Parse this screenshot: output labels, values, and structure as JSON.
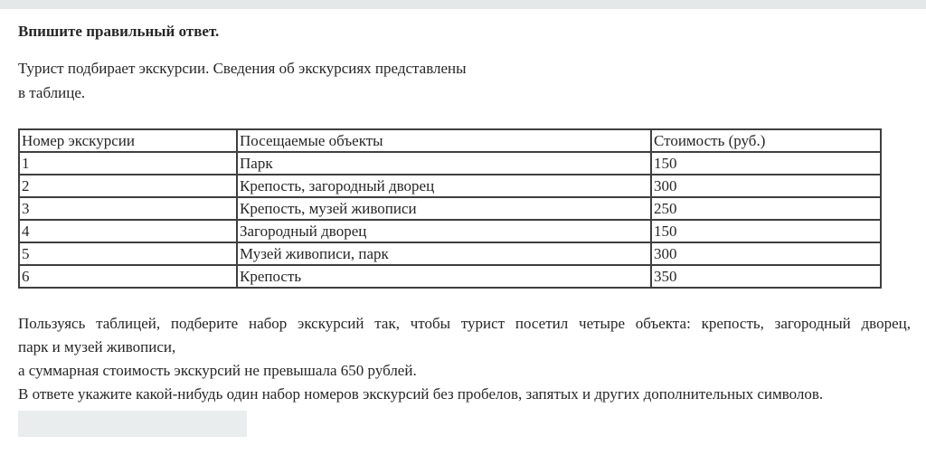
{
  "page": {
    "heading": "Впишите правильный ответ.",
    "intro_line1": "Турист подбирает экскурсии. Сведения об экскурсиях представлены",
    "intro_line2": "в таблице."
  },
  "table": {
    "headers": [
      "Номер экскурсии",
      "Посещаемые объекты",
      "Стоимость (руб.)"
    ],
    "rows": [
      [
        "1",
        "Парк",
        "150"
      ],
      [
        "2",
        "Крепость, загородный дворец",
        "300"
      ],
      [
        "3",
        "Крепость, музей живописи",
        "250"
      ],
      [
        "4",
        "Загородный дворец",
        "150"
      ],
      [
        "5",
        "Музей живописи, парк",
        "300"
      ],
      [
        "6",
        "Крепость",
        "350"
      ]
    ]
  },
  "task": {
    "line1": "Пользуясь таблицей, подберите набор экскурсий так, чтобы турист посетил четыре объекта: крепость, загородный дворец,",
    "line2": "парк и музей живописи,",
    "line3": "а суммарная стоимость экскурсий не превышала 650 рублей.",
    "line4": "В ответе укажите какой-нибудь один набор номеров экскурсий без пробелов, запятых и других дополнительных символов."
  },
  "answer": {
    "value": ""
  },
  "colors": {
    "top_bar": "#e4e8e9",
    "answer_box": "#e9edee",
    "table_border": "#3f3f3f",
    "text": "#262626"
  }
}
